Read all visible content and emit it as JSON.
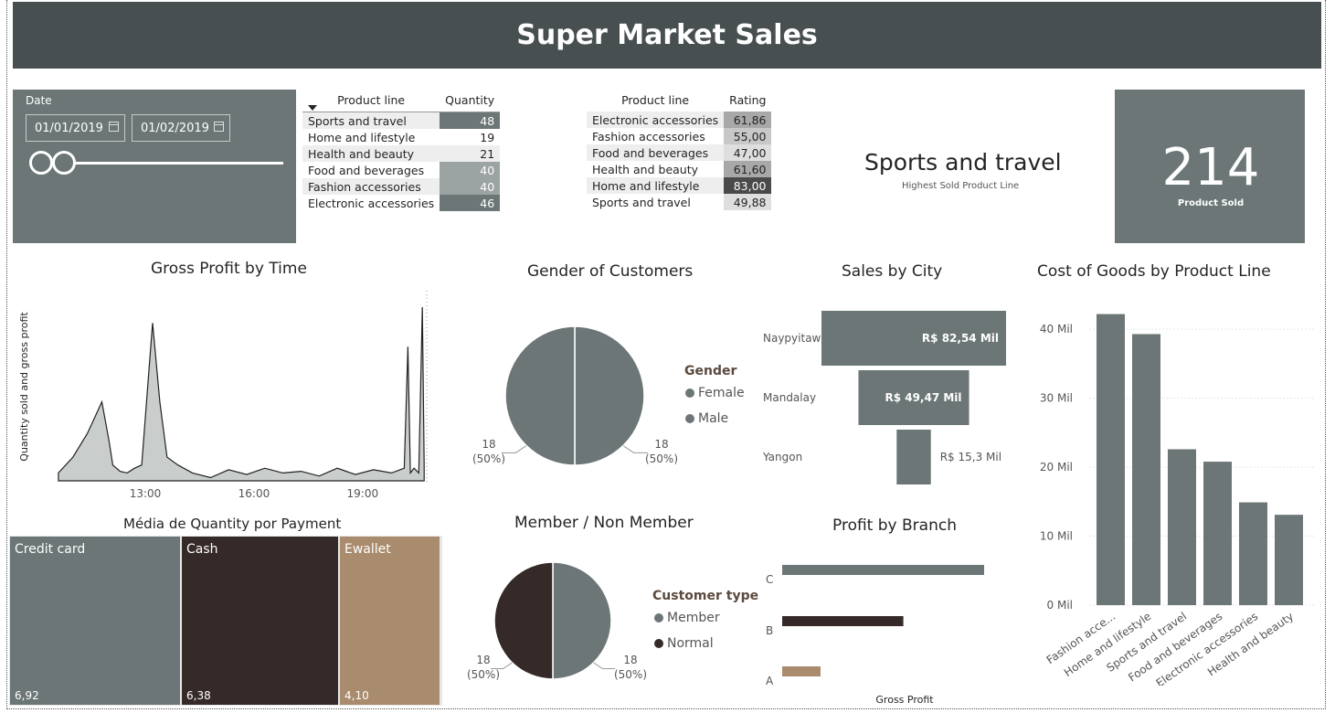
{
  "title": "Super Market Sales",
  "slicer": {
    "label": "Date",
    "start": "01/01/2019",
    "end": "01/02/2019"
  },
  "qty_table": {
    "headers": [
      "Product line",
      "Quantity"
    ],
    "rows": [
      {
        "name": "Sports and travel",
        "value": "48"
      },
      {
        "name": "Home and lifestyle",
        "value": "19"
      },
      {
        "name": "Health and beauty",
        "value": "21"
      },
      {
        "name": "Food and beverages",
        "value": "40"
      },
      {
        "name": "Fashion accessories",
        "value": "40"
      },
      {
        "name": "Electronic accessories",
        "value": "46"
      }
    ]
  },
  "rating_table": {
    "headers": [
      "Product line",
      "Rating"
    ],
    "rows": [
      {
        "name": "Electronic accessories",
        "value": "61,86"
      },
      {
        "name": "Fashion accessories",
        "value": "55,00"
      },
      {
        "name": "Food and beverages",
        "value": "47,00"
      },
      {
        "name": "Health and beauty",
        "value": "61,60"
      },
      {
        "name": "Home and lifestyle",
        "value": "83,00"
      },
      {
        "name": "Sports and travel",
        "value": "49,88"
      }
    ]
  },
  "top_card": {
    "value": "Sports and travel",
    "label": "Highest Sold Product Line"
  },
  "kpi": {
    "value": "214",
    "label": "Product Sold"
  },
  "colors": {
    "slate": "#6c7676",
    "dark": "#352a28",
    "tan": "#a98b6d",
    "header": "#474f51",
    "area": "#c9cecd"
  },
  "chart_data": [
    {
      "id": "gross_profit_by_time",
      "type": "area",
      "title": "Gross Profit by Time",
      "xlabel": "",
      "ylabel": "Quantity sold and gross profit",
      "x_ticks": [
        "13:00",
        "16:00",
        "19:00"
      ],
      "x_hours": [
        10.6,
        11.0,
        11.4,
        11.8,
        12.0,
        12.1,
        12.3,
        12.5,
        12.7,
        12.9,
        13.05,
        13.2,
        13.4,
        13.6,
        13.9,
        14.3,
        14.8,
        15.3,
        15.8,
        16.3,
        16.8,
        17.3,
        17.8,
        18.3,
        18.8,
        19.3,
        19.8,
        20.15,
        20.25,
        20.32,
        20.42,
        20.55,
        20.65,
        20.7
      ],
      "values": [
        0.05,
        0.15,
        0.3,
        0.5,
        0.25,
        0.1,
        0.06,
        0.05,
        0.08,
        0.1,
        0.55,
        1.0,
        0.5,
        0.15,
        0.1,
        0.05,
        0.02,
        0.07,
        0.04,
        0.08,
        0.05,
        0.06,
        0.03,
        0.08,
        0.04,
        0.07,
        0.05,
        0.08,
        0.85,
        0.05,
        0.08,
        0.05,
        1.1,
        0.1
      ],
      "x_range": [
        10.4,
        20.72
      ],
      "grid": false
    },
    {
      "id": "gender",
      "type": "pie",
      "title": "Gender of Customers",
      "legend_title": "Gender",
      "legend_position": "right",
      "slices": [
        {
          "label": "Female",
          "value": 18,
          "annotation": "18",
          "pct": "(50%)"
        },
        {
          "label": "Male",
          "value": 18,
          "annotation": "18",
          "pct": "(50%)"
        }
      ]
    },
    {
      "id": "sales_by_city",
      "type": "bar",
      "title": "Sales by City",
      "categories": [
        "Naypyitaw",
        "Mandalay",
        "Yangon"
      ],
      "values": [
        82.54,
        49.47,
        15.3
      ],
      "labels": [
        "R$ 82,54 Mil",
        "R$ 49,47 Mil",
        "R$ 15,3 Mil"
      ],
      "unit": "Mil"
    },
    {
      "id": "cost_of_goods",
      "type": "bar",
      "title": "Cost of Goods by Product Line",
      "categories": [
        "Fashion acce...",
        "Home and lifestyle",
        "Sports and travel",
        "Food and beverages",
        "Electronic accessories",
        "Health and beauty"
      ],
      "values": [
        42.2,
        39.3,
        22.6,
        20.8,
        14.9,
        13.1
      ],
      "y_ticks": [
        "0 Mil",
        "10 Mil",
        "20 Mil",
        "30 Mil",
        "40 Mil"
      ],
      "ylim": [
        0,
        44
      ],
      "grid": true
    },
    {
      "id": "payment_treemap",
      "type": "treemap",
      "title": "Média de Quantity por Payment",
      "categories": [
        "Credit card",
        "Cash",
        "Ewallet"
      ],
      "values": [
        6.92,
        6.38,
        4.1
      ],
      "labels": [
        "6,92",
        "6,38",
        "4,10"
      ]
    },
    {
      "id": "member",
      "type": "pie",
      "title": "Member / Non Member",
      "legend_title": "Customer type",
      "legend_position": "right",
      "slices": [
        {
          "label": "Member",
          "value": 18,
          "annotation": "18",
          "pct": "(50%)"
        },
        {
          "label": "Normal",
          "value": 18,
          "annotation": "18",
          "pct": "(50%)"
        }
      ]
    },
    {
      "id": "profit_by_branch",
      "type": "bar",
      "title": "Profit by Branch",
      "xlabel": "Gross Profit",
      "categories": [
        "C",
        "B",
        "A"
      ],
      "values": [
        100,
        60,
        19
      ]
    }
  ]
}
